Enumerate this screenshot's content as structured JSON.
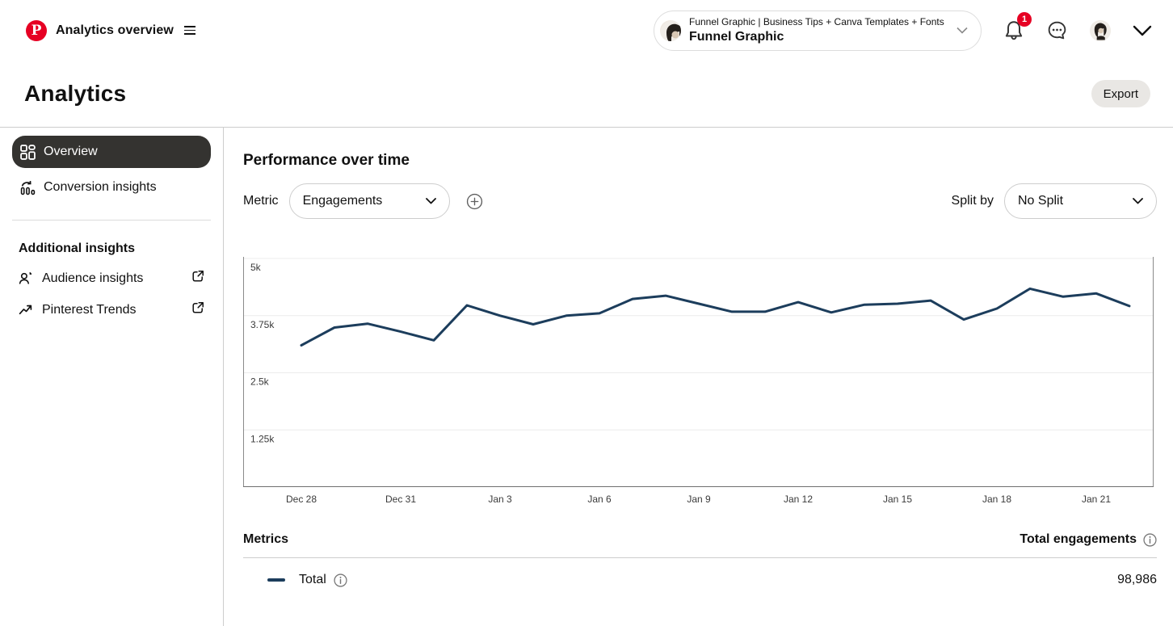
{
  "header": {
    "app_title": "Analytics overview",
    "account_switcher": {
      "business_line": "Funnel Graphic | Business Tips + Canva Templates + Fonts",
      "account_name": "Funnel Graphic"
    },
    "notification_count": "1"
  },
  "page": {
    "title": "Analytics",
    "export_label": "Export"
  },
  "sidebar": {
    "items": [
      {
        "label": "Overview",
        "selected": true
      },
      {
        "label": "Conversion insights",
        "selected": false
      }
    ],
    "section_title": "Additional insights",
    "external_items": [
      {
        "label": "Audience insights"
      },
      {
        "label": "Pinterest Trends"
      }
    ]
  },
  "main": {
    "section_title": "Performance over time",
    "metric_label": "Metric",
    "metric_value": "Engagements",
    "split_by_label": "Split by",
    "split_by_value": "No Split"
  },
  "metrics_table": {
    "title": "Metrics",
    "column_header": "Total engagements",
    "rows": [
      {
        "label": "Total",
        "value": "98,986"
      }
    ]
  },
  "chart_data": {
    "type": "line",
    "title": "Performance over time",
    "xlabel": "",
    "ylabel": "Engagements",
    "ylim": [
      0,
      5000
    ],
    "grid": "horizontal",
    "legend_position": "below-table",
    "x": [
      "Dec 28",
      "Dec 29",
      "Dec 30",
      "Dec 31",
      "Jan 1",
      "Jan 2",
      "Jan 3",
      "Jan 4",
      "Jan 5",
      "Jan 6",
      "Jan 7",
      "Jan 8",
      "Jan 9",
      "Jan 10",
      "Jan 11",
      "Jan 12",
      "Jan 13",
      "Jan 14",
      "Jan 15",
      "Jan 16",
      "Jan 17",
      "Jan 18",
      "Jan 19",
      "Jan 20",
      "Jan 21",
      "Jan 22"
    ],
    "x_ticks": [
      {
        "label": "Dec 28",
        "index": 0
      },
      {
        "label": "Dec 31",
        "index": 3
      },
      {
        "label": "Jan 3",
        "index": 6
      },
      {
        "label": "Jan 6",
        "index": 9
      },
      {
        "label": "Jan 9",
        "index": 12
      },
      {
        "label": "Jan 12",
        "index": 15
      },
      {
        "label": "Jan 15",
        "index": 18
      },
      {
        "label": "Jan 18",
        "index": 21
      },
      {
        "label": "Jan 21",
        "index": 24
      }
    ],
    "y_ticks": [
      {
        "label": "5k",
        "value": 5000
      },
      {
        "label": "3.75k",
        "value": 3750
      },
      {
        "label": "2.5k",
        "value": 2500
      },
      {
        "label": "1.25k",
        "value": 1250
      }
    ],
    "series": [
      {
        "name": "Total",
        "color": "#1c3d5c",
        "values": [
          3100,
          3490,
          3575,
          3400,
          3210,
          3975,
          3750,
          3560,
          3750,
          3800,
          4115,
          4185,
          4010,
          3835,
          3835,
          4045,
          3820,
          3990,
          4010,
          4080,
          3665,
          3905,
          4340,
          4165,
          4235,
          3960
        ]
      }
    ]
  },
  "icons": {
    "logo": "pinterest-p",
    "menu": "hamburger",
    "notifications": "bell",
    "messages": "chat-ellipsis",
    "overview": "dashboard-grid",
    "conversion": "bars-with-arrow",
    "audience": "person-pie",
    "trends": "trending-up",
    "external": "arrow-out-of-box",
    "add_metric": "plus-circle",
    "info": "circled-i"
  },
  "colors": {
    "brand_red": "#e60023",
    "line_navy": "#1c3d5c",
    "selected_item_bg": "#343330",
    "button_gray": "#e9e7e4"
  }
}
